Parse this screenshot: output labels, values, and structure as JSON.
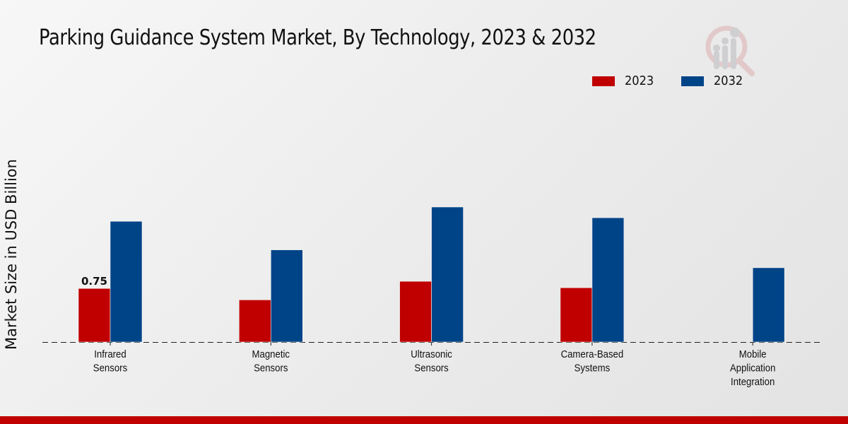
{
  "chart_data": {
    "type": "bar",
    "title": "Parking Guidance System Market, By Technology, 2023 & 2032",
    "xlabel": "",
    "ylabel": "Market Size in USD Billion",
    "categories": [
      [
        "Infrared",
        "Sensors"
      ],
      [
        "Magnetic",
        "Sensors"
      ],
      [
        "Ultrasonic",
        "Sensors"
      ],
      [
        "Camera-Based",
        "Systems"
      ],
      [
        "Mobile",
        "Application",
        "Integration"
      ]
    ],
    "series": [
      {
        "name": "2023",
        "color": "#c00000",
        "values": [
          0.75,
          0.59,
          0.85,
          0.76,
          0
        ]
      },
      {
        "name": "2032",
        "color": "#004488",
        "values": [
          1.69,
          1.29,
          1.89,
          1.74,
          1.04
        ]
      }
    ],
    "data_labels": [
      {
        "series": 0,
        "index": 0,
        "text": "0.75"
      }
    ],
    "ylim": [
      0,
      3.7
    ],
    "grid": false,
    "baseline": "dashed",
    "legend_position": "top-right"
  },
  "legend": {
    "items": [
      "2023",
      "2032"
    ]
  },
  "footer_color": "#c00000"
}
